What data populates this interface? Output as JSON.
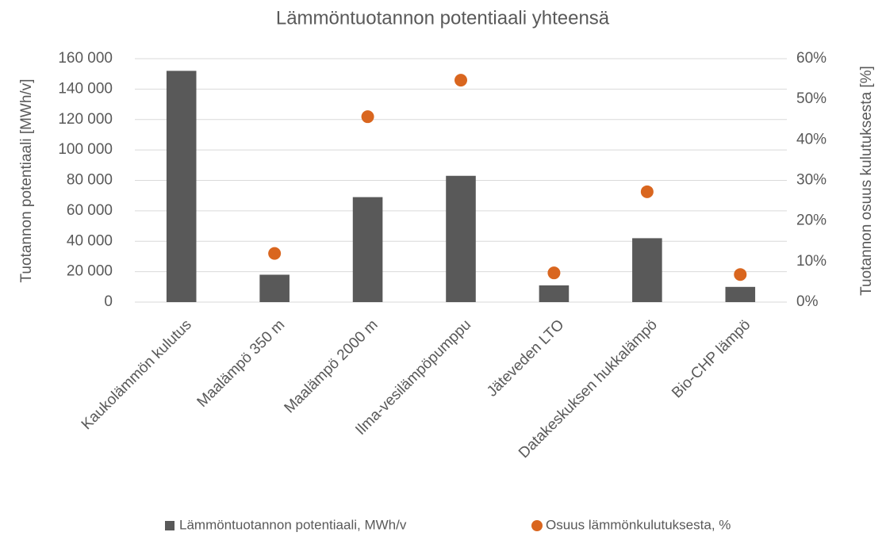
{
  "chart_data": {
    "type": "bar",
    "title": "Lämmöntuotannon potentiaali yhteensä",
    "y_label": "Tuotannon potentiaali [MWh/v]",
    "y2_label": "Tuotannon osuus kulutuksesta [%]",
    "categories": [
      "Kaukolämmön kulutus",
      "Maalämpö 350 m",
      "Maalämpö 2000 m",
      "Ilma-vesilämpöpumppu",
      "Jäteveden LTO",
      "Datakeskuksen hukkalämpö",
      "Bio-CHP lämpö"
    ],
    "series": [
      {
        "name": "Lämmöntuotannon potentiaali, MWh/v",
        "type": "bar",
        "color": "#595959",
        "values": [
          152000,
          18000,
          69000,
          83000,
          11000,
          42000,
          10000
        ]
      },
      {
        "name": "Osuus lämmönkulutuksesta, %",
        "type": "scatter",
        "axis": "y2",
        "color": "#d9661f",
        "values": [
          null,
          12,
          45.7,
          54.7,
          7.2,
          27.2,
          6.8
        ]
      }
    ],
    "ylim": [
      0,
      160000
    ],
    "yticks": [
      0,
      {
        "value": 20000,
        "label": "20 000"
      },
      {
        "value": 40000,
        "label": "40 000"
      },
      {
        "value": 60000,
        "label": "60 000"
      },
      {
        "value": 80000,
        "label": "80 000"
      },
      {
        "value": 100000,
        "label": "100 000"
      },
      {
        "value": 120000,
        "label": "120 000"
      },
      {
        "value": 140000,
        "label": "140 000"
      },
      {
        "value": 160000,
        "label": "160 000"
      }
    ],
    "y2lim": [
      0,
      60
    ],
    "y2ticks": [
      {
        "value": 0,
        "label": "0%"
      },
      {
        "value": 10,
        "label": "10%"
      },
      {
        "value": 20,
        "label": "20%"
      },
      {
        "value": 30,
        "label": "30%"
      },
      {
        "value": 40,
        "label": "40%"
      },
      {
        "value": 50,
        "label": "50%"
      },
      {
        "value": 60,
        "label": "60%"
      }
    ],
    "grid": true,
    "legend": "bottom"
  }
}
